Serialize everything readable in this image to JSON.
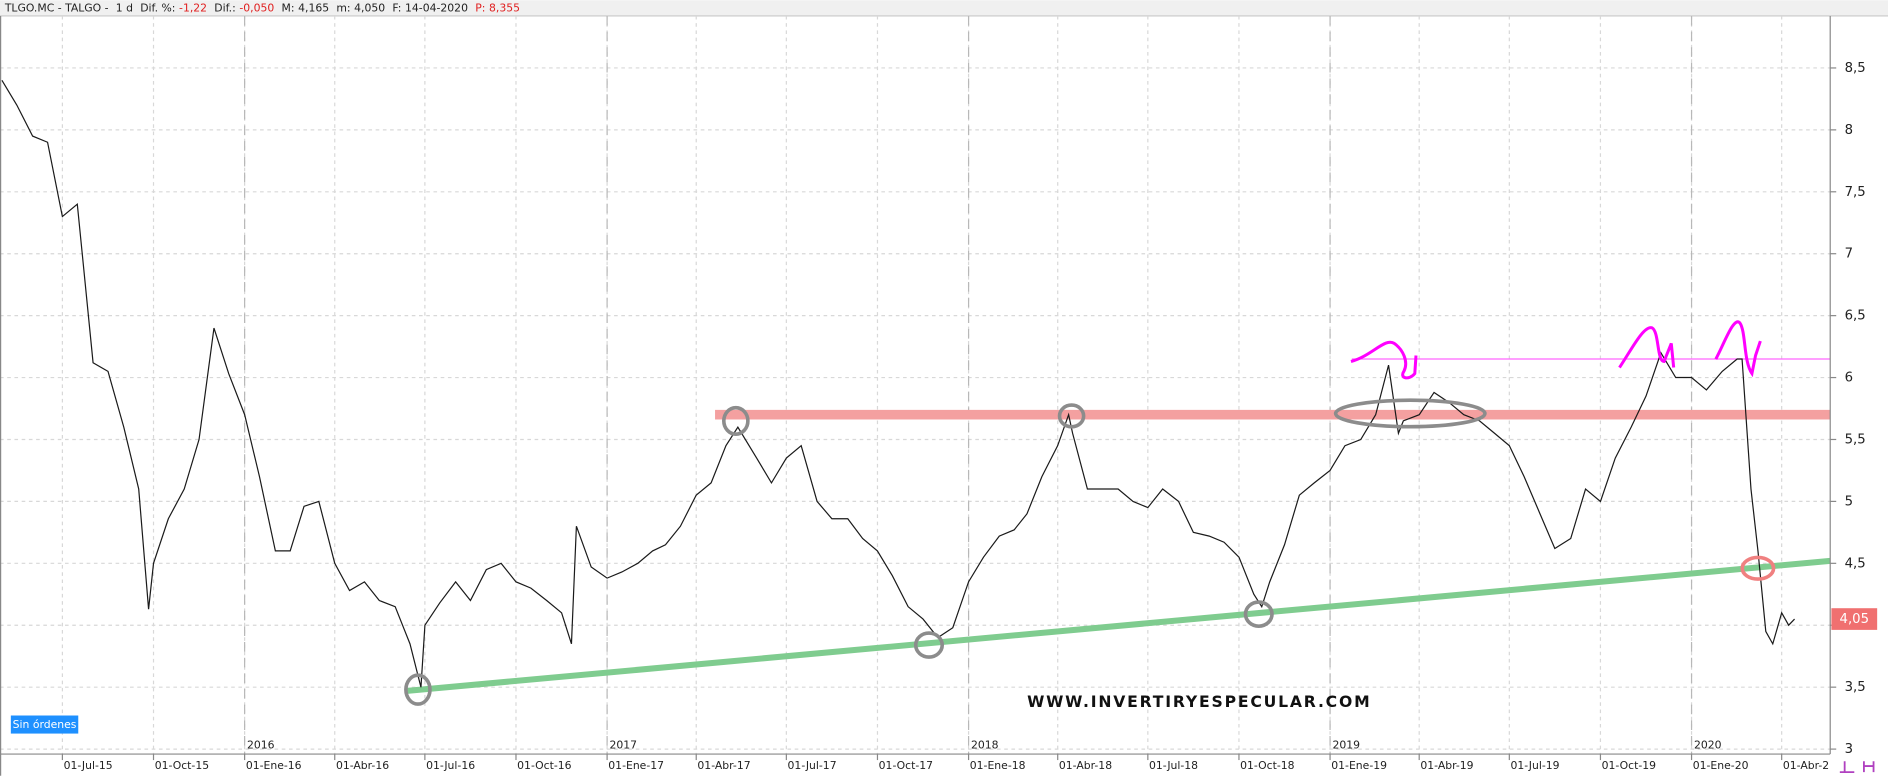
{
  "header": {
    "symbol": "TLGO.MC - TALGO -",
    "interval": "1 d",
    "fields": [
      {
        "label": "Dif. %:",
        "value": "-1,22",
        "color": "#e02020"
      },
      {
        "label": "Dif.:",
        "value": "-0,050",
        "color": "#e02020"
      },
      {
        "label": "M:",
        "value": "4,165",
        "color": "#222222"
      },
      {
        "label": "m:",
        "value": "4,050",
        "color": "#222222"
      },
      {
        "label": "F:",
        "value": "14-04-2020",
        "color": "#222222"
      },
      {
        "label": "P:",
        "value": "8,355",
        "color": "#e02020"
      }
    ]
  },
  "orders_button": "Sin órdenes",
  "watermark": "WWW.INVERTIRYESPECULAR.COM",
  "chart_data": {
    "type": "line",
    "grid": true,
    "xlim": [
      "2015-04-29",
      "2020-05-20"
    ],
    "ylim": [
      2.96,
      8.92
    ],
    "yticks": [
      3,
      {
        "value": 3.5,
        "label": "3,5"
      },
      4,
      {
        "value": 4.5,
        "label": "4,5"
      },
      5,
      {
        "value": 5.5,
        "label": "5,5"
      },
      6,
      {
        "value": 6.5,
        "label": "6,5"
      },
      7,
      {
        "value": 7.5,
        "label": "7,5"
      },
      8,
      {
        "value": 8.5,
        "label": "8,5"
      }
    ],
    "xticks": [
      {
        "value": "2015-07-01",
        "label": "01-Jul-15"
      },
      {
        "value": "2015-10-01",
        "label": "01-Oct-15"
      },
      {
        "value": "2016-01-01",
        "label": "01-Ene-16"
      },
      {
        "value": "2016-04-01",
        "label": "01-Abr-16"
      },
      {
        "value": "2016-07-01",
        "label": "01-Jul-16"
      },
      {
        "value": "2016-10-01",
        "label": "01-Oct-16"
      },
      {
        "value": "2017-01-01",
        "label": "01-Ene-17"
      },
      {
        "value": "2017-04-01",
        "label": "01-Abr-17"
      },
      {
        "value": "2017-07-01",
        "label": "01-Jul-17"
      },
      {
        "value": "2017-10-01",
        "label": "01-Oct-17"
      },
      {
        "value": "2018-01-01",
        "label": "01-Ene-18"
      },
      {
        "value": "2018-04-01",
        "label": "01-Abr-18"
      },
      {
        "value": "2018-07-01",
        "label": "01-Jul-18"
      },
      {
        "value": "2018-10-01",
        "label": "01-Oct-18"
      },
      {
        "value": "2019-01-01",
        "label": "01-Ene-19"
      },
      {
        "value": "2019-04-01",
        "label": "01-Abr-19"
      },
      {
        "value": "2019-07-01",
        "label": "01-Jul-19"
      },
      {
        "value": "2019-10-01",
        "label": "01-Oct-19"
      },
      {
        "value": "2020-01-01",
        "label": "01-Ene-20"
      },
      {
        "value": "2020-04-01",
        "label": "01-Abr-2"
      }
    ],
    "year_ticks": [
      {
        "value": "2016-01-01",
        "label": "2016"
      },
      {
        "value": "2017-01-01",
        "label": "2017"
      },
      {
        "value": "2018-01-01",
        "label": "2018"
      },
      {
        "value": "2019-01-01",
        "label": "2019"
      },
      {
        "value": "2020-01-01",
        "label": "2020"
      }
    ],
    "series": [
      {
        "color": "#1a1a1a",
        "x": [
          "2015-05-01",
          "2015-05-16",
          "2015-06-01",
          "2015-06-16",
          "2015-07-01",
          "2015-07-16",
          "2015-08-01",
          "2015-08-16",
          "2015-09-01",
          "2015-09-16",
          "2015-09-26",
          "2015-10-01",
          "2015-10-16",
          "2015-11-01",
          "2015-11-16",
          "2015-12-01",
          "2015-12-16",
          "2016-01-01",
          "2016-01-16",
          "2016-02-01",
          "2016-02-16",
          "2016-03-01",
          "2016-03-16",
          "2016-04-01",
          "2016-04-16",
          "2016-05-01",
          "2016-05-16",
          "2016-06-01",
          "2016-06-16",
          "2016-06-27",
          "2016-07-01",
          "2016-07-16",
          "2016-08-01",
          "2016-08-16",
          "2016-09-01",
          "2016-09-16",
          "2016-10-01",
          "2016-10-16",
          "2016-11-01",
          "2016-11-16",
          "2016-11-26",
          "2016-12-01",
          "2016-12-16",
          "2017-01-01",
          "2017-01-16",
          "2017-02-01",
          "2017-02-16",
          "2017-03-01",
          "2017-03-16",
          "2017-04-01",
          "2017-04-16",
          "2017-05-01",
          "2017-05-13",
          "2017-06-01",
          "2017-06-16",
          "2017-07-01",
          "2017-07-16",
          "2017-08-01",
          "2017-08-16",
          "2017-09-01",
          "2017-09-16",
          "2017-10-01",
          "2017-10-16",
          "2017-11-01",
          "2017-11-16",
          "2017-12-01",
          "2017-12-16",
          "2018-01-01",
          "2018-01-16",
          "2018-02-01",
          "2018-02-16",
          "2018-03-01",
          "2018-03-16",
          "2018-04-01",
          "2018-04-12",
          "2018-04-16",
          "2018-05-01",
          "2018-05-16",
          "2018-06-01",
          "2018-06-16",
          "2018-07-01",
          "2018-07-16",
          "2018-08-01",
          "2018-08-16",
          "2018-09-01",
          "2018-09-16",
          "2018-10-01",
          "2018-10-16",
          "2018-10-24",
          "2018-11-01",
          "2018-11-16",
          "2018-12-01",
          "2018-12-16",
          "2019-01-01",
          "2019-01-16",
          "2019-02-01",
          "2019-02-16",
          "2019-03-01",
          "2019-03-11",
          "2019-03-16",
          "2019-04-01",
          "2019-04-16",
          "2019-05-01",
          "2019-05-16",
          "2019-06-01",
          "2019-06-16",
          "2019-07-01",
          "2019-07-16",
          "2019-08-01",
          "2019-08-16",
          "2019-09-01",
          "2019-09-16",
          "2019-10-01",
          "2019-10-16",
          "2019-11-01",
          "2019-11-16",
          "2019-12-01",
          "2019-12-16",
          "2020-01-01",
          "2020-01-16",
          "2020-02-01",
          "2020-02-16",
          "2020-02-21",
          "2020-03-01",
          "2020-03-08",
          "2020-03-16",
          "2020-03-23",
          "2020-04-01",
          "2020-04-08",
          "2020-04-14"
        ],
        "values": [
          8.4,
          8.2,
          7.95,
          7.9,
          7.3,
          7.4,
          6.12,
          6.05,
          5.6,
          5.1,
          4.13,
          4.5,
          4.86,
          5.1,
          5.5,
          6.4,
          6.03,
          5.7,
          5.2,
          4.6,
          4.6,
          4.96,
          5.0,
          4.5,
          4.28,
          4.35,
          4.2,
          4.15,
          3.85,
          3.5,
          4.0,
          4.18,
          4.35,
          4.2,
          4.45,
          4.5,
          4.35,
          4.3,
          4.2,
          4.1,
          3.85,
          4.8,
          4.47,
          4.38,
          4.43,
          4.5,
          4.6,
          4.65,
          4.8,
          5.05,
          5.15,
          5.45,
          5.6,
          5.35,
          5.15,
          5.35,
          5.45,
          5.0,
          4.86,
          4.86,
          4.7,
          4.6,
          4.4,
          4.15,
          4.05,
          3.9,
          3.98,
          4.35,
          4.55,
          4.72,
          4.77,
          4.9,
          5.2,
          5.45,
          5.7,
          5.55,
          5.1,
          5.1,
          5.1,
          5.0,
          4.95,
          5.1,
          5.0,
          4.75,
          4.72,
          4.67,
          4.55,
          4.25,
          4.15,
          4.35,
          4.65,
          5.05,
          5.15,
          5.25,
          5.45,
          5.5,
          5.7,
          6.1,
          5.55,
          5.65,
          5.7,
          5.88,
          5.8,
          5.7,
          5.65,
          5.55,
          5.45,
          5.2,
          4.9,
          4.62,
          4.7,
          5.1,
          5.0,
          5.35,
          5.6,
          5.85,
          6.2,
          6.0,
          6.0,
          5.9,
          6.05,
          6.15,
          6.15,
          5.1,
          4.6,
          3.95,
          3.85,
          4.1,
          4.0,
          4.05
        ]
      }
    ],
    "last_price": {
      "value": 4.05,
      "label": "4,05"
    },
    "lines": [
      {
        "x": [
          "2017-04-20",
          "2020-05-20"
        ],
        "y": [
          5.7,
          5.7
        ],
        "color": "#f4a0a0"
      },
      {
        "x": [
          "2016-06-13",
          "2020-05-20"
        ],
        "y": [
          3.47,
          4.52
        ],
        "color": "#7fcc8f"
      },
      {
        "x": [
          "2019-01-23",
          "2020-05-20"
        ],
        "y": [
          6.15,
          6.15
        ],
        "color": "#ff66ff"
      }
    ],
    "markers": [
      {
        "x": "2016-06-24",
        "y": 3.48,
        "color": "#8c8c8c"
      },
      {
        "x": "2017-05-11",
        "y": 5.65,
        "color": "#8c8c8c"
      },
      {
        "x": "2017-11-22",
        "y": 3.84,
        "color": "#8c8c8c"
      },
      {
        "x": "2018-04-15",
        "y": 5.69,
        "color": "#8c8c8c"
      },
      {
        "x": "2018-10-21",
        "y": 4.09,
        "color": "#8c8c8c"
      },
      {
        "x": "2019-03-23",
        "y": 5.71,
        "color": "#8c8c8c"
      },
      {
        "x": "2020-03-08",
        "y": 4.46,
        "color": "#f08080"
      }
    ]
  }
}
